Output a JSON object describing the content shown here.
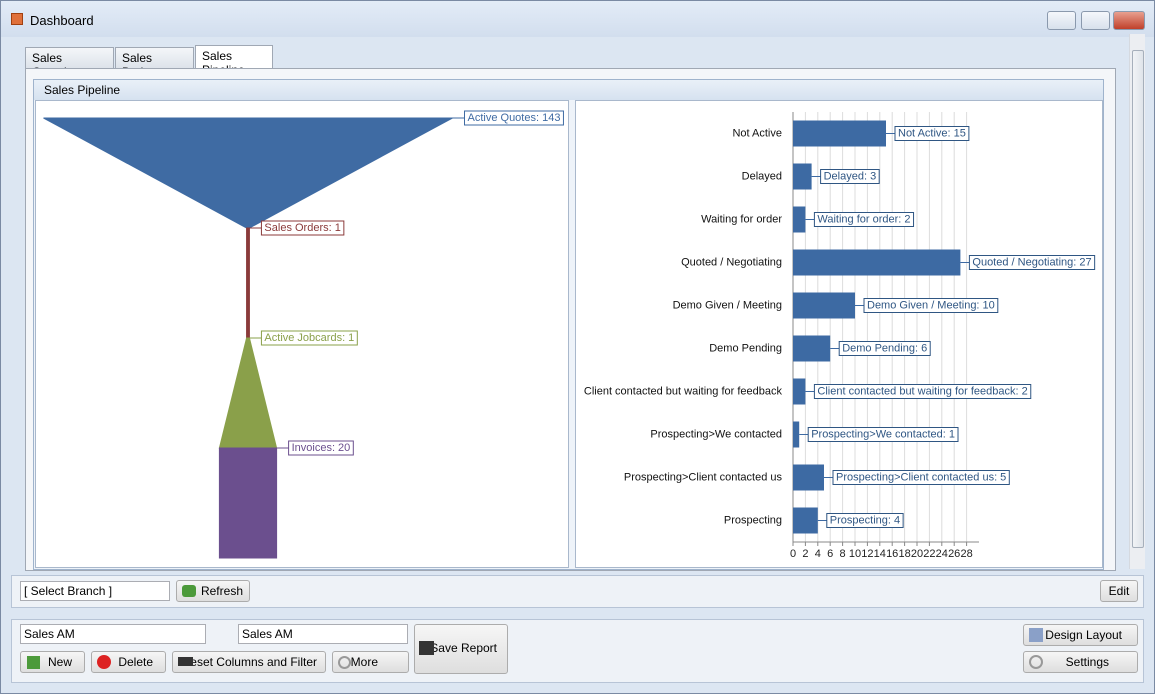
{
  "window": {
    "title": "Dashboard"
  },
  "tabs": [
    "Sales Overview",
    "Sales Budget",
    "Sales Pipeline"
  ],
  "group_title": "Sales Pipeline",
  "funnel_chart": {
    "type": "funnel",
    "values": [
      143,
      1,
      1,
      20
    ],
    "value_labels": [
      "Active Quotes: 143",
      "Sales Orders: 1",
      "Active Jobcards: 1",
      "Invoices: 20"
    ],
    "colors": [
      "#3f6ba3",
      "#8b3a3a",
      "#8aa04a",
      "#6b4f8e"
    ]
  },
  "bar_chart": {
    "type": "bar",
    "orientation": "horizontal",
    "categories": [
      "Not Active",
      "Delayed",
      "Waiting for order",
      "Quoted / Negotiating",
      "Demo Given / Meeting",
      "Demo Pending",
      "Client contacted but waiting for feedback",
      "Prospecting>We contacted",
      "Prospecting>Client contacted us",
      "Prospecting"
    ],
    "values": [
      15,
      3,
      2,
      27,
      10,
      6,
      2,
      1,
      5,
      4
    ],
    "value_labels": [
      "Not Active: 15",
      "Delayed: 3",
      "Waiting for order: 2",
      "Quoted / Negotiating: 27",
      "Demo Given / Meeting: 10",
      "Demo Pending: 6",
      "Client contacted but waiting for feedback: 2",
      "Prospecting>We contacted: 1",
      "Prospecting>Client contacted us: 5",
      "Prospecting: 4"
    ],
    "color": "#3d6aa3",
    "xlim": [
      0,
      30
    ],
    "xticks": [
      0,
      2,
      4,
      6,
      8,
      10,
      12,
      14,
      16,
      18,
      20,
      22,
      24,
      26,
      28
    ],
    "grid": true
  },
  "filter_bar": {
    "branch_select": "[ Select Branch ]",
    "refresh": "Refresh",
    "edit": "Edit"
  },
  "report_bar": {
    "layout_select": "Sales AM",
    "layout_name": "Sales AM",
    "new": "New",
    "delete": "Delete",
    "reset": "Reset Columns and Filter",
    "more": "More",
    "save": "Save Report",
    "design_layout": "Design Layout",
    "settings": "Settings"
  }
}
